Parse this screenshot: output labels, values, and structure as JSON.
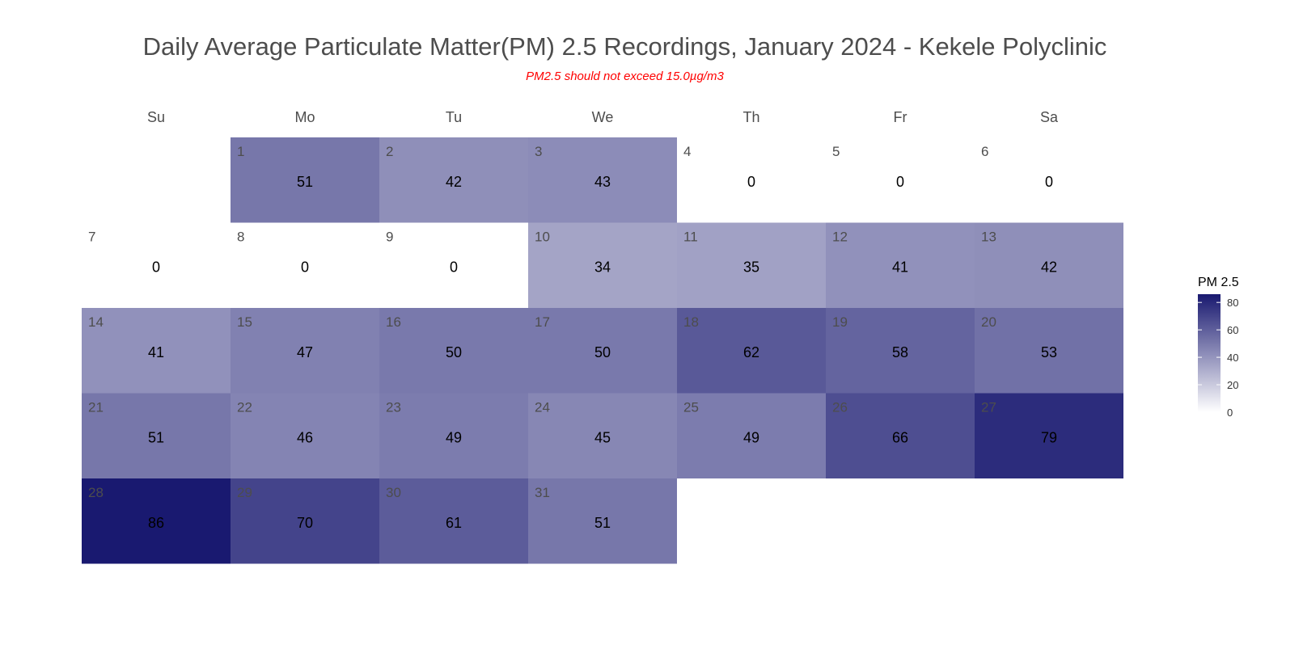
{
  "chart_data": {
    "type": "heatmap",
    "title": "Daily Average Particulate Matter(PM) 2.5 Recordings, January 2024 - Kekele Polyclinic",
    "subtitle": "PM2.5 should not exceed 15.0µg/m3",
    "weekdays": [
      "Su",
      "Mo",
      "Tu",
      "We",
      "Th",
      "Fr",
      "Sa"
    ],
    "first_weekday_index": 1,
    "days": [
      1,
      2,
      3,
      4,
      5,
      6,
      7,
      8,
      9,
      10,
      11,
      12,
      13,
      14,
      15,
      16,
      17,
      18,
      19,
      20,
      21,
      22,
      23,
      24,
      25,
      26,
      27,
      28,
      29,
      30,
      31
    ],
    "values": [
      51,
      42,
      43,
      0,
      0,
      0,
      0,
      0,
      0,
      34,
      35,
      41,
      42,
      41,
      47,
      50,
      50,
      62,
      58,
      53,
      51,
      46,
      49,
      45,
      49,
      66,
      79,
      86,
      70,
      61,
      51
    ],
    "legend": {
      "title": "PM 2.5",
      "ticks": [
        0,
        20,
        40,
        60,
        80
      ],
      "range": [
        0,
        86
      ]
    },
    "color_low": "#ffffff",
    "color_high": "#191970"
  }
}
